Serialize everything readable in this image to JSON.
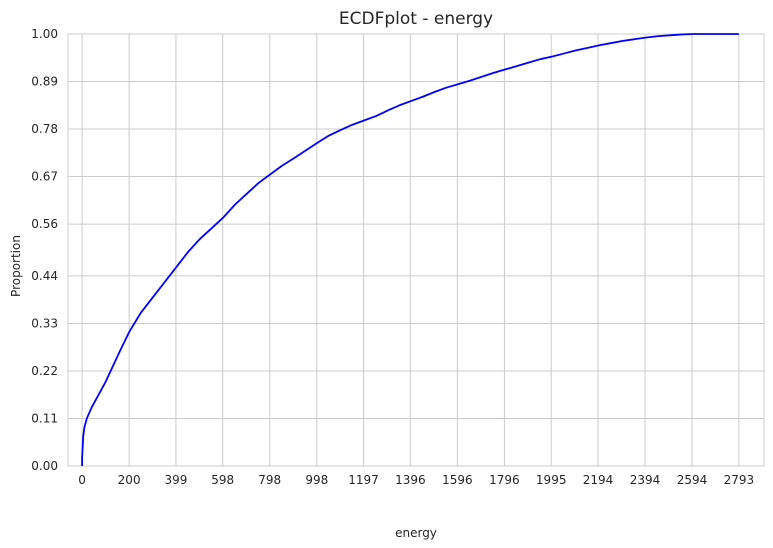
{
  "chart_data": {
    "type": "line",
    "title": "ECDFplot - energy",
    "xlabel": "energy",
    "ylabel": "Proportion",
    "xlim": [
      -60,
      2900
    ],
    "ylim": [
      0,
      1
    ],
    "grid": true,
    "xticks": [
      0,
      200,
      399,
      598,
      798,
      998,
      1197,
      1396,
      1596,
      1796,
      1995,
      2194,
      2394,
      2594,
      2793
    ],
    "yticks": [
      0.0,
      0.11,
      0.22,
      0.33,
      0.44,
      0.56,
      0.67,
      0.78,
      0.89,
      1.0
    ],
    "ytick_labels": [
      "0.00",
      "0.11",
      "0.22",
      "0.33",
      "0.44",
      "0.56",
      "0.67",
      "0.78",
      "0.89",
      "1.00"
    ],
    "series": [
      {
        "color": "#0000ff",
        "x": [
          0,
          0,
          5,
          10,
          20,
          40,
          60,
          80,
          100,
          130,
          160,
          200,
          250,
          300,
          350,
          400,
          450,
          500,
          550,
          600,
          650,
          700,
          750,
          800,
          850,
          900,
          950,
          1000,
          1050,
          1100,
          1150,
          1200,
          1250,
          1300,
          1350,
          1400,
          1450,
          1500,
          1550,
          1600,
          1650,
          1700,
          1750,
          1800,
          1850,
          1900,
          1950,
          2000,
          2050,
          2100,
          2150,
          2200,
          2250,
          2300,
          2350,
          2400,
          2450,
          2500,
          2550,
          2600,
          2650,
          2700,
          2793
        ],
        "y": [
          0.0,
          0.02,
          0.07,
          0.09,
          0.11,
          0.135,
          0.155,
          0.175,
          0.195,
          0.23,
          0.265,
          0.31,
          0.355,
          0.39,
          0.425,
          0.46,
          0.495,
          0.525,
          0.55,
          0.575,
          0.605,
          0.63,
          0.655,
          0.675,
          0.695,
          0.712,
          0.73,
          0.748,
          0.765,
          0.778,
          0.79,
          0.8,
          0.81,
          0.823,
          0.835,
          0.845,
          0.855,
          0.866,
          0.876,
          0.884,
          0.892,
          0.901,
          0.91,
          0.918,
          0.926,
          0.934,
          0.942,
          0.948,
          0.955,
          0.962,
          0.968,
          0.974,
          0.979,
          0.984,
          0.988,
          0.992,
          0.995,
          0.997,
          0.999,
          1.0,
          1.0,
          1.0,
          1.0
        ]
      }
    ]
  }
}
